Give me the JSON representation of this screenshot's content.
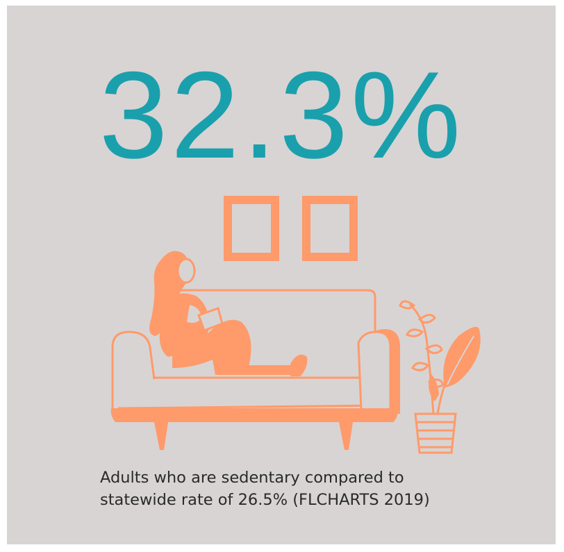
{
  "headline": {
    "value": "32.3%"
  },
  "caption": {
    "line1": "Adults who are sedentary compared to",
    "line2": "statewide rate of 26.5% (FLCHARTS 2019)"
  },
  "colors": {
    "background": "#d8d4d4",
    "accent_teal": "#1aa0ac",
    "illustration_orange": "#ff9a6a",
    "text": "#2a2a2a"
  },
  "icons": [
    "picture-frame-icon",
    "sofa-icon",
    "person-reading-icon",
    "potted-plant-icon"
  ]
}
